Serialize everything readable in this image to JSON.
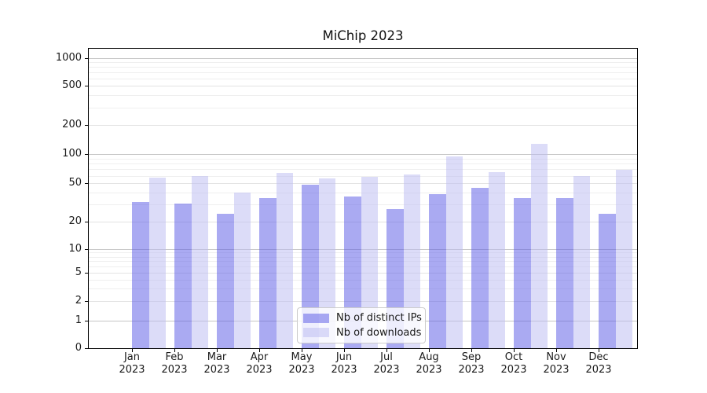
{
  "chart_data": {
    "type": "bar",
    "title": "MiChip 2023",
    "categories": [
      "Jan 2023",
      "Feb 2023",
      "Mar 2023",
      "Apr 2023",
      "May 2023",
      "Jun 2023",
      "Jul 2023",
      "Aug 2023",
      "Sep 2023",
      "Oct 2023",
      "Nov 2023",
      "Dec 2023"
    ],
    "series": [
      {
        "name": "Nb of distinct IPs",
        "color": "rgba(85,85,230,0.5)",
        "values": [
          32,
          31,
          24,
          35,
          49,
          37,
          27,
          39,
          45,
          35,
          35,
          24
        ]
      },
      {
        "name": "Nb of downloads",
        "color": "rgba(186,186,242,0.5)",
        "values": [
          58,
          60,
          40,
          64,
          57,
          59,
          62,
          96,
          66,
          128,
          60,
          70
        ]
      }
    ],
    "xlabel": "",
    "ylabel": "",
    "yscale": "symlog",
    "yticks": [
      0,
      1,
      2,
      5,
      10,
      20,
      50,
      100,
      200,
      500,
      1000
    ],
    "ylim": [
      0,
      1300
    ],
    "grid": true,
    "legend_position": "lower center"
  }
}
